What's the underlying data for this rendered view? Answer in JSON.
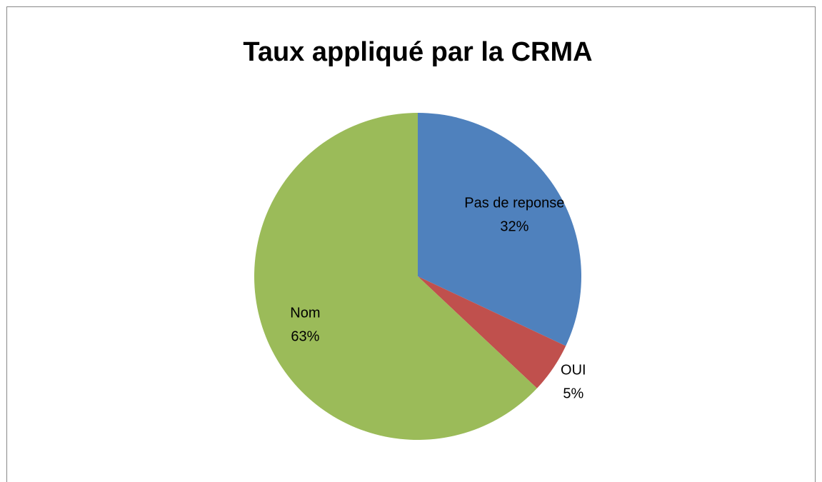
{
  "chart_data": {
    "type": "pie",
    "title": "Taux appliqué par la CRMA",
    "categories": [
      "Pas de reponse",
      "OUI",
      "Nom"
    ],
    "values": [
      32,
      5,
      63
    ],
    "value_labels": [
      "32%",
      "5%",
      "63%"
    ],
    "colors": [
      "#4f81bd",
      "#c0504d",
      "#9bbb59"
    ]
  }
}
